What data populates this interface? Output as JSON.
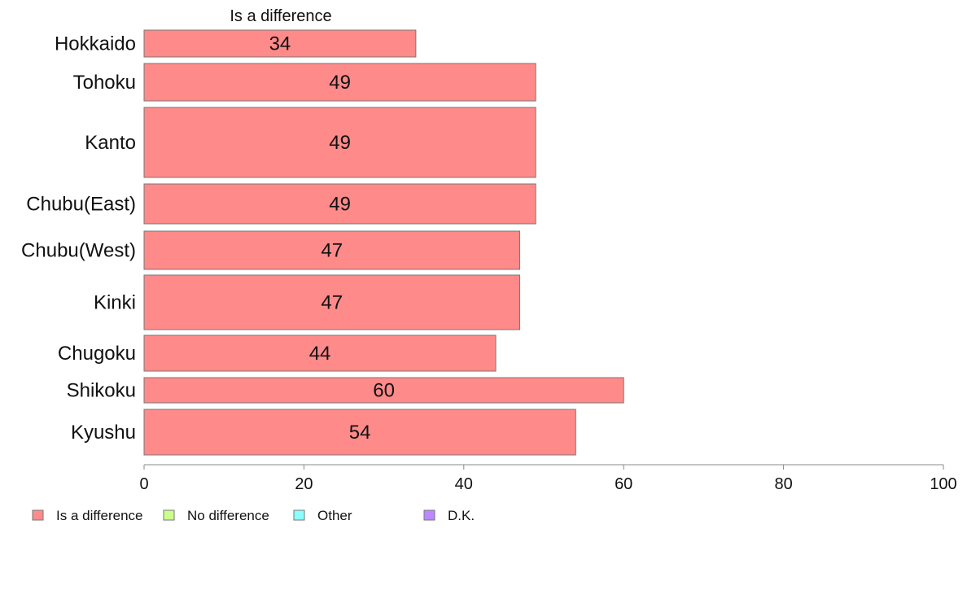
{
  "chart_data": {
    "type": "bar",
    "orientation": "horizontal",
    "series_title": "Is a difference",
    "categories": [
      "Hokkaido",
      "Tohoku",
      "Kanto",
      "Chubu(East)",
      "Chubu(West)",
      "Kinki",
      "Chugoku",
      "Shikoku",
      "Kyushu"
    ],
    "series": [
      {
        "name": "Is a difference",
        "values": [
          34,
          49,
          49,
          49,
          47,
          47,
          44,
          60,
          54
        ],
        "color": "#ff8a8a"
      }
    ],
    "data_labels": [
      "34",
      "49",
      "49",
      "49",
      "47",
      "47",
      "44",
      "60",
      "54"
    ],
    "xlim": [
      0,
      100
    ],
    "x_ticks": [
      0,
      20,
      40,
      60,
      80,
      100
    ],
    "x_tick_labels": [
      "0",
      "20",
      "40",
      "60",
      "80",
      "100"
    ],
    "grid": false,
    "legend_position": "bottom-left",
    "legend": [
      {
        "label": "Is a difference",
        "color": "#ff8a8a"
      },
      {
        "label": "No difference",
        "color": "#ccff8a"
      },
      {
        "label": "Other",
        "color": "#8affff"
      },
      {
        "label": "D.K.",
        "color": "#bb88ff"
      }
    ]
  }
}
